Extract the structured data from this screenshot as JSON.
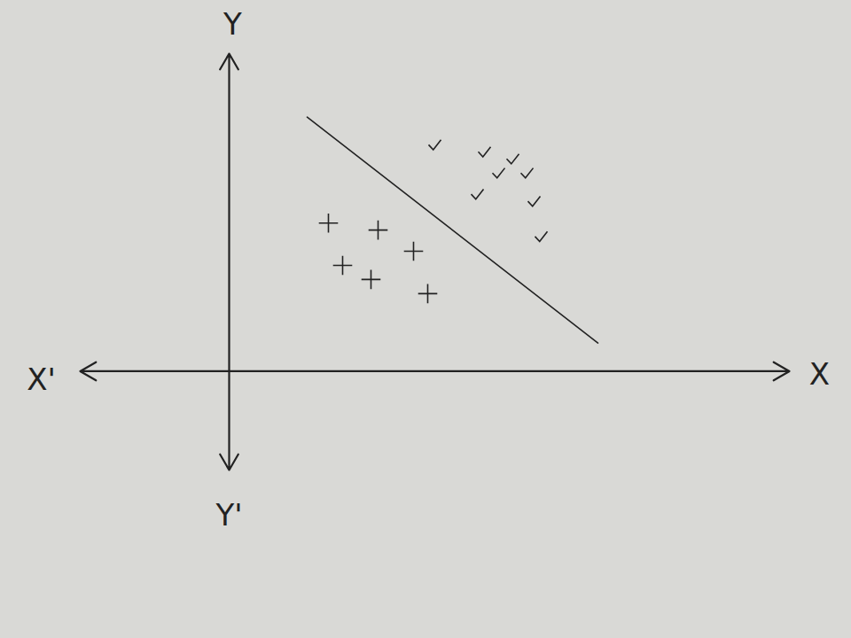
{
  "chart_data": {
    "type": "scatter",
    "axis_labels": {
      "x": "X",
      "x_negative": "X'",
      "y": "Y",
      "y_negative": "Y'"
    },
    "xlim": [
      -2.1,
      7.9
    ],
    "ylim": [
      -1.4,
      4.5
    ],
    "tick_labels": false,
    "grid": false,
    "series": [
      {
        "marker": "plus",
        "color": "#222222",
        "x": [
          1.4,
          2.1,
          2.6,
          1.6,
          2.0,
          2.8
        ],
        "values": [
          2.1,
          2.0,
          1.7,
          1.5,
          1.3,
          1.1
        ]
      },
      {
        "marker": "check",
        "color": "#222222",
        "x": [
          2.9,
          3.6,
          4.0,
          3.8,
          4.2,
          3.5,
          4.3,
          4.4
        ],
        "values": [
          3.2,
          3.1,
          3.0,
          2.8,
          2.8,
          2.5,
          2.4,
          1.9
        ]
      },
      {
        "type": "line",
        "line_style": "solid",
        "color": "#222222",
        "x": [
          1.1,
          5.2
        ],
        "values": [
          3.6,
          0.4
        ]
      }
    ]
  }
}
